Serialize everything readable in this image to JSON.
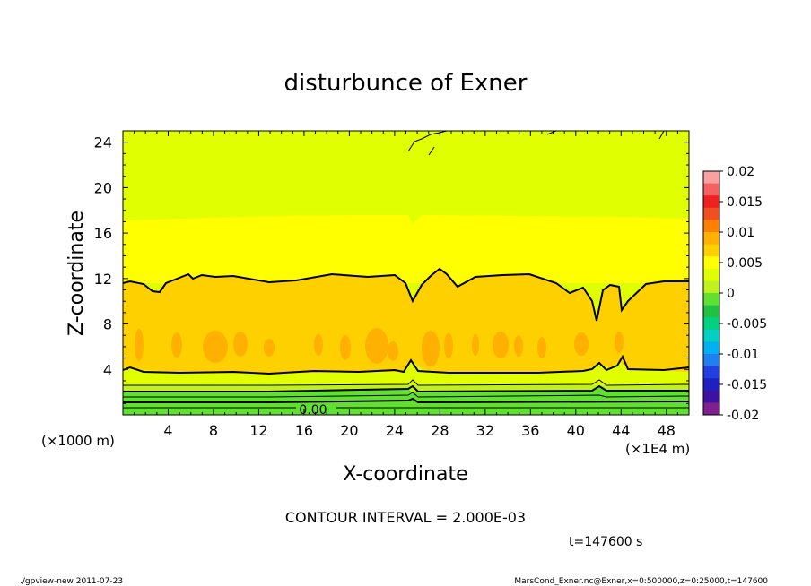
{
  "chart_data": {
    "type": "heatmap",
    "title": "disturbunce of Exner",
    "xlabel": "X-coordinate",
    "ylabel": "Z-coordinate",
    "x_unit_label": "(×1E4 m)",
    "y_unit_label": "(×1000 m)",
    "xlim": [
      0,
      50
    ],
    "ylim": [
      0,
      25
    ],
    "x_ticks": [
      4,
      8,
      12,
      16,
      20,
      24,
      28,
      32,
      36,
      40,
      44,
      48
    ],
    "y_ticks": [
      4,
      8,
      12,
      16,
      20,
      24
    ],
    "colorbar": {
      "range": [
        -0.02,
        0.02
      ],
      "labels": [
        "0.02",
        "0.015",
        "0.01",
        "0.005",
        "0",
        "-0.005",
        "-0.01",
        "-0.015",
        "-0.02"
      ],
      "colors": [
        "#f9a0a0",
        "#f56060",
        "#f02020",
        "#f05020",
        "#ff8000",
        "#ffb000",
        "#ffd000",
        "#ffff00",
        "#e0ff00",
        "#c0f020",
        "#60e030",
        "#20c040",
        "#00d080",
        "#00d0c0",
        "#00b0f0",
        "#2080f0",
        "#2040e0",
        "#2020c0",
        "#4010a0",
        "#802090"
      ]
    },
    "contour_label": "0.00",
    "contour_interval_text": "CONTOUR INTERVAL = 2.000E-03",
    "bands": [
      {
        "z_bottom": 17,
        "z_top": 25,
        "color": "#e0ff00",
        "value_range": "0.002–0.004"
      },
      {
        "z_bottom": 12,
        "z_top": 17,
        "color": "#ffff00",
        "value_range": "0.004–0.006"
      },
      {
        "z_bottom": 4,
        "z_top": 12,
        "color": "#ffd000",
        "value_range": "0.006–0.008"
      },
      {
        "z_bottom": 3,
        "z_top": 4,
        "color": "#e0ff00",
        "value_range": "0.002–0.006"
      },
      {
        "z_bottom": 0,
        "z_top": 3,
        "color": "#60e030",
        "value_range": "< 0.002"
      }
    ]
  },
  "annotations": {
    "time": "t=147600 s",
    "program": "./gpview-new   2011-07-23",
    "source": "MarsCond_Exner.nc@Exner,x=0:500000,z=0:25000,t=147600"
  }
}
